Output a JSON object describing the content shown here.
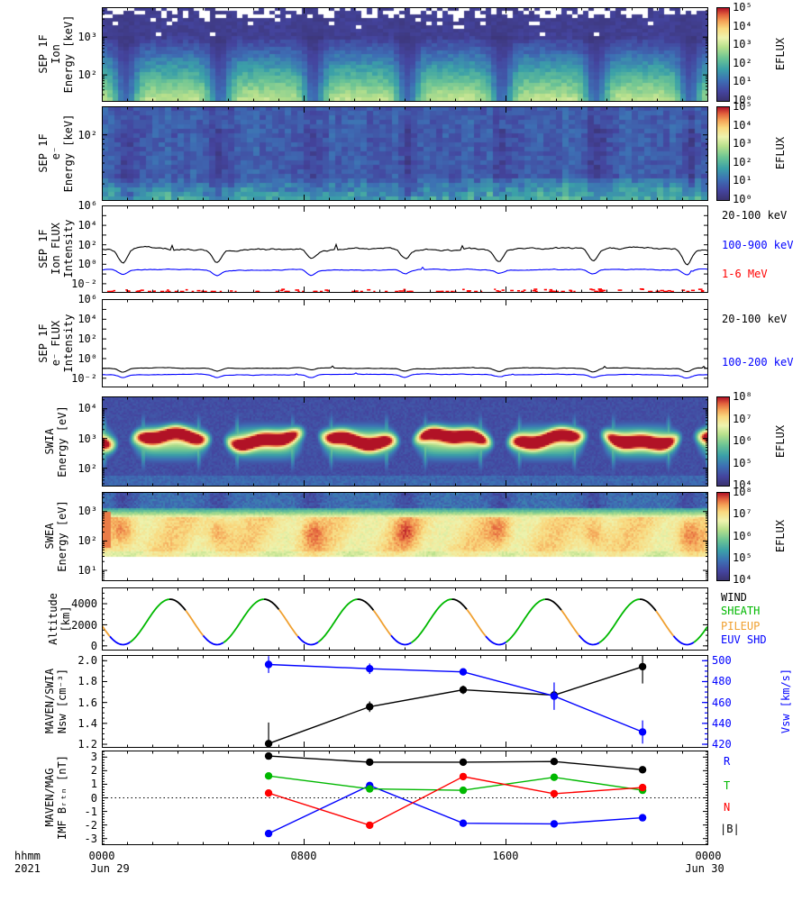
{
  "x_axis": {
    "tick_labels": [
      "0000",
      "0800",
      "1600",
      "0000"
    ],
    "tick_hours": [
      0,
      8,
      16,
      24
    ],
    "start_date": "Jun 29",
    "end_date": "Jun 30",
    "format_label": "hhmm",
    "year": "2021"
  },
  "chart_data": [
    {
      "type": "heatmap",
      "ylabel": "SEP 1F\nIon\nEnergy [keV]",
      "yscale": "log",
      "yrange_keV": [
        20,
        6000
      ],
      "ylog": [
        3.78,
        1.3
      ],
      "tick_style": "log-fine",
      "yticks": [
        {
          "label": "10³",
          "v": 1000
        },
        {
          "label": "10²",
          "v": 100
        }
      ],
      "colorbar": {
        "label": "EFLUX",
        "ticks": [
          "10⁵",
          "10⁴",
          "10³",
          "10²",
          "10¹",
          "10⁰"
        ],
        "range_log10": [
          0,
          5
        ]
      },
      "pattern": {
        "style": "sep_ion",
        "periapsis_fracs": [
          0.035,
          0.19,
          0.345,
          0.5,
          0.655,
          0.81,
          0.965
        ],
        "description": "Bright yellow-green ion flux below ~100 keV, purple low-flux background above with white dropout pixels at highest energies; dark flux notches at each periapsis."
      }
    },
    {
      "type": "heatmap",
      "ylabel": "SEP 1F\ne⁻\nEnergy [keV]",
      "yscale": "log",
      "yrange_keV": [
        20,
        200
      ],
      "ylog": [
        2.3,
        1.3
      ],
      "tick_style": "log-fine",
      "yticks": [
        {
          "label": "10²",
          "v": 100
        }
      ],
      "colorbar": {
        "label": "EFLUX",
        "ticks": [
          "10⁵",
          "10⁴",
          "10³",
          "10²",
          "10¹",
          "10⁰"
        ],
        "range_log10": [
          0,
          5
        ]
      },
      "pattern": {
        "style": "sep_e",
        "periapsis_fracs": [
          0.035,
          0.19,
          0.345,
          0.5,
          0.655,
          0.81,
          0.965
        ],
        "description": "Mottled blue-purple electron flux with teal/green enhancement at lowest energies; faint dark streaks at periapsis."
      }
    },
    {
      "type": "line",
      "ylabel": "SEP 1F\nIon FLUX\nIntensity",
      "yscale": "log",
      "ylog": [
        6,
        -2.89
      ],
      "tick_style": "log-decades",
      "yticks": [
        {
          "label": "10⁶",
          "v": 1000000
        },
        {
          "label": "10⁴",
          "v": 10000
        },
        {
          "label": "10²",
          "v": 100
        },
        {
          "label": "10⁰",
          "v": 1
        },
        {
          "label": "10⁻²",
          "v": 0.01
        }
      ],
      "series": [
        {
          "name": "20-100 keV",
          "color": "#000000",
          "mean_log10": 1.5,
          "wobble": 0.16,
          "dip": 1.1
        },
        {
          "name": "100-900 keV",
          "color": "#0000ff",
          "mean_log10": -0.55,
          "wobble": 0.07,
          "dip": 0.45
        },
        {
          "name": "1-6 MeV",
          "color": "#ff0000",
          "mean_log10": -2.75,
          "sparse": true
        }
      ]
    },
    {
      "type": "line",
      "ylabel": "SEP 1F\ne⁻ FLUX\nIntensity",
      "yscale": "log",
      "ylog": [
        6,
        -2.89
      ],
      "tick_style": "log-decades",
      "yticks": [
        {
          "label": "10⁶",
          "v": 1000000
        },
        {
          "label": "10⁴",
          "v": 10000
        },
        {
          "label": "10²",
          "v": 100
        },
        {
          "label": "10⁰",
          "v": 1
        },
        {
          "label": "10⁻²",
          "v": 0.01
        }
      ],
      "series": [
        {
          "name": "20-100 keV",
          "color": "#000000",
          "mean_log10": -0.95,
          "wobble": 0.05,
          "dip": 0.3
        },
        {
          "name": "100-200 keV",
          "color": "#0000ff",
          "mean_log10": -1.6,
          "wobble": 0.05,
          "dip": 0.25
        }
      ]
    },
    {
      "type": "heatmap",
      "ylabel": "SWIA\nEnergy [eV]",
      "yscale": "log",
      "yrange_eV": [
        25,
        25000
      ],
      "ylog": [
        4.4,
        1.4
      ],
      "tick_style": "log-fine",
      "yticks": [
        {
          "label": "10⁴",
          "v": 10000
        },
        {
          "label": "10³",
          "v": 1000
        },
        {
          "label": "10²",
          "v": 100
        }
      ],
      "colorbar": {
        "label": "EFLUX",
        "ticks": [
          "10⁸",
          "10⁷",
          "10⁶",
          "10⁵",
          "10⁴"
        ],
        "range_log10": [
          4,
          8
        ]
      },
      "pattern": {
        "style": "swia",
        "periapsis_fracs": [
          0.035,
          0.19,
          0.345,
          0.5,
          0.655,
          0.81,
          0.965
        ],
        "description": "Solar-wind ion beam: intense red core near ~1 keV with yellow-green halo during each solar-wind interval, dark blue gaps during magnetosphere passes."
      }
    },
    {
      "type": "heatmap",
      "ylabel": "SWEA\nEnergy [eV]",
      "yscale": "log",
      "yrange_eV": [
        5,
        4500
      ],
      "ylog": [
        3.65,
        0.65
      ],
      "tick_style": "log-fine",
      "yticks": [
        {
          "label": "10³",
          "v": 1000
        },
        {
          "label": "10²",
          "v": 100
        },
        {
          "label": "10¹",
          "v": 10
        }
      ],
      "colorbar": {
        "label": "EFLUX",
        "ticks": [
          "10⁸",
          "10⁷",
          "10⁶",
          "10⁵",
          "10⁴"
        ],
        "range_log10": [
          4,
          8
        ]
      },
      "pattern": {
        "style": "swea",
        "periapsis_fracs": [
          0.035,
          0.19,
          0.345,
          0.5,
          0.655,
          0.81,
          0.965
        ],
        "description": "Electron spectra: teal-blue band above ~1 keV, yellow transition, broad orange-red flux below a few hundred eV with dark-red blobs near periapsis; no data below ~30 eV."
      }
    },
    {
      "type": "line",
      "ylabel": "Altitude\n[km]",
      "yscale": "linear",
      "ylim": [
        5500,
        -400
      ],
      "minor_step": 500,
      "tick_style": "linear",
      "yticks": [
        {
          "label": "4000",
          "v": 4000
        },
        {
          "label": "2000",
          "v": 2000
        },
        {
          "label": "0",
          "v": 0
        }
      ],
      "orbit": {
        "period_frac": 0.155,
        "first_min_frac": 0.035,
        "apoapsis_km": 4400,
        "periapsis_km": 150
      },
      "legend": [
        {
          "label": "WIND",
          "color": "#000000"
        },
        {
          "label": "SHEATH",
          "color": "#00b800"
        },
        {
          "label": "PILEUP",
          "color": "#f0a030"
        },
        {
          "label": "EUV SHD",
          "color": "#0000ff"
        }
      ]
    },
    {
      "type": "scatter",
      "ylabel": "MAVEN/SWIA\nNsw [cm⁻³]",
      "yscale": "linear",
      "ylim": [
        2.05,
        1.17
      ],
      "minor_step": 0.05,
      "tick_style": "linear",
      "yticks": [
        {
          "label": "2.0",
          "v": 2.0
        },
        {
          "label": "1.8",
          "v": 1.8
        },
        {
          "label": "1.6",
          "v": 1.6
        },
        {
          "label": "1.4",
          "v": 1.4
        },
        {
          "label": "1.2",
          "v": 1.2
        }
      ],
      "x_hours": [
        6.6,
        10.6,
        14.3,
        17.9,
        21.4
      ],
      "series": [
        {
          "name": "Nsw",
          "color": "#000000",
          "axis": "left",
          "values": [
            1.21,
            1.56,
            1.72,
            1.67,
            1.94
          ],
          "err": [
            0.2,
            0.05,
            0.04,
            0.05,
            0.16
          ]
        },
        {
          "name": "Vsw",
          "color": "#0000ff",
          "axis": "right",
          "values": [
            496,
            492,
            489,
            466,
            432
          ],
          "err": [
            8,
            5,
            3,
            13,
            11
          ]
        }
      ],
      "right_axis": {
        "label": "Vsw [km/s]",
        "color": "#0000ff",
        "ylim": [
          505,
          417
        ],
        "minor_step": 5,
        "yticks": [
          {
            "label": "500",
            "v": 500
          },
          {
            "label": "480",
            "v": 480
          },
          {
            "label": "460",
            "v": 460
          },
          {
            "label": "440",
            "v": 440
          },
          {
            "label": "420",
            "v": 420
          }
        ]
      }
    },
    {
      "type": "scatter",
      "ylabel": "MAVEN/MAG\nIMF Bᵣₜₙ [nT]",
      "yscale": "linear",
      "ylim": [
        3.45,
        -3.45
      ],
      "minor_step": 0.2,
      "tick_style": "linear",
      "zero_line": true,
      "yticks": [
        {
          "label": "3",
          "v": 3
        },
        {
          "label": "2",
          "v": 2
        },
        {
          "label": "1",
          "v": 1
        },
        {
          "label": "0",
          "v": 0
        },
        {
          "label": "-1",
          "v": -1
        },
        {
          "label": "-2",
          "v": -2
        },
        {
          "label": "-3",
          "v": -3
        }
      ],
      "x_hours": [
        6.6,
        10.6,
        14.3,
        17.9,
        21.4
      ],
      "series": [
        {
          "name": "R",
          "color": "#0000ff",
          "values": [
            -2.6,
            0.9,
            -1.85,
            -1.9,
            -1.45
          ]
        },
        {
          "name": "T",
          "color": "#00b800",
          "values": [
            1.6,
            0.65,
            0.55,
            1.5,
            0.55
          ]
        },
        {
          "name": "N",
          "color": "#ff0000",
          "values": [
            0.35,
            -2.0,
            1.55,
            0.3,
            0.75
          ]
        },
        {
          "name": "|B|",
          "color": "#000000",
          "values": [
            3.05,
            2.6,
            2.6,
            2.65,
            2.05
          ]
        }
      ]
    }
  ]
}
